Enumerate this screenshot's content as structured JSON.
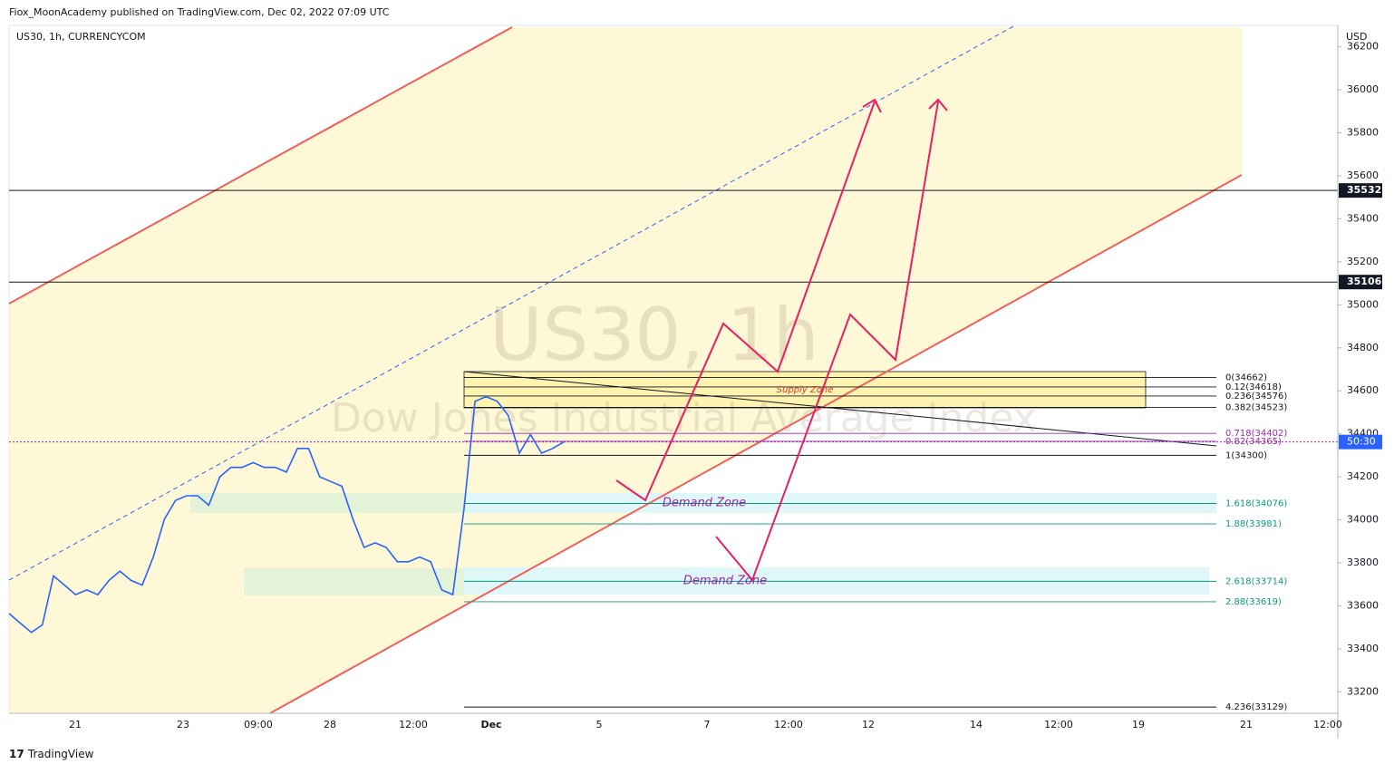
{
  "header": {
    "published": "Fiox_MoonAcademy published on TradingView.com, Dec 02, 2022 07:09 UTC",
    "symbol": "US30, 1h, CURRENCYCOM",
    "currency": "USD",
    "footer": "TradingView"
  },
  "watermark": {
    "title": "US30, 1h",
    "subtitle": "Dow Jones Industrial Average Index"
  },
  "chart_data": {
    "type": "line",
    "color": "#2962ff",
    "values": [
      33564,
      33520,
      33476,
      33511,
      33739,
      33696,
      33652,
      33674,
      33652,
      33718,
      33761,
      33718,
      33696,
      33827,
      34003,
      34090,
      34112,
      34112,
      34068,
      34200,
      34244,
      34244,
      34266,
      34244,
      34244,
      34222,
      34332,
      34332,
      34200,
      34178,
      34156,
      34003,
      33871,
      33893,
      33871,
      33805,
      33805,
      33827,
      33805,
      33674,
      33652,
      34046,
      34551,
      34573,
      34551,
      34485,
      34310,
      34397,
      34310,
      34332,
      34362
    ],
    "ylim": [
      33100,
      36300
    ],
    "yticks": [
      33200,
      33400,
      33600,
      33800,
      34000,
      34200,
      34400,
      34600,
      34800,
      35000,
      35200,
      35400,
      35600,
      35800,
      36000,
      36200
    ],
    "x_labels": [
      "21",
      "23",
      "09:00",
      "28",
      "12:00",
      "Dec",
      "5",
      "7",
      "12:00",
      "12",
      "14",
      "12:00",
      "19",
      "21",
      "12:00"
    ],
    "price_lines": [
      {
        "label": "35532",
        "value": 35532
      },
      {
        "label": "35106",
        "value": 35106
      }
    ],
    "countdown": "50:30",
    "fib_levels": [
      {
        "label": "0(34662)",
        "value": 34662,
        "color": "#131722"
      },
      {
        "label": "0.12(34618)",
        "value": 34618,
        "color": "#131722"
      },
      {
        "label": "0.236(34576)",
        "value": 34576,
        "color": "#131722"
      },
      {
        "label": "0.382(34523)",
        "value": 34523,
        "color": "#131722"
      },
      {
        "label": "0.718(34402)",
        "value": 34402,
        "color": "#9c27b0"
      },
      {
        "label": "0.82(34365)",
        "value": 34365,
        "color": "#9c27b0"
      },
      {
        "label": "1(34300)",
        "value": 34300,
        "color": "#131722"
      },
      {
        "label": "1.618(34076)",
        "value": 34076,
        "color": "#089981"
      },
      {
        "label": "1.88(33981)",
        "value": 33981,
        "color": "#089981"
      },
      {
        "label": "2.618(33714)",
        "value": 33714,
        "color": "#089981"
      },
      {
        "label": "2.88(33619)",
        "value": 33619,
        "color": "#089981"
      },
      {
        "label": "4.236(33129)",
        "value": 33129,
        "color": "#131722"
      }
    ],
    "annotations": {
      "supply": "Supply Zone",
      "demand_1": "Demand Zone",
      "demand_2": "Demand Zone"
    }
  }
}
